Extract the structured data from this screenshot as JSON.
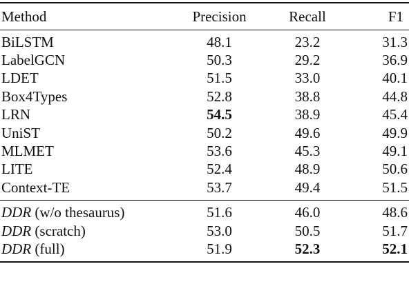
{
  "table": {
    "headers": {
      "method": "Method",
      "precision": "Precision",
      "recall": "Recall",
      "f1": "F1"
    },
    "group1": [
      {
        "method": "BiLSTM",
        "precision": "48.1",
        "recall": "23.2",
        "f1": "31.3"
      },
      {
        "method": "LabelGCN",
        "precision": "50.3",
        "recall": "29.2",
        "f1": "36.9"
      },
      {
        "method": "LDET",
        "precision": "51.5",
        "recall": "33.0",
        "f1": "40.1"
      },
      {
        "method": "Box4Types",
        "precision": "52.8",
        "recall": "38.8",
        "f1": "44.8"
      },
      {
        "method": "LRN",
        "precision": "54.5",
        "recall": "38.9",
        "f1": "45.4"
      },
      {
        "method": "UniST",
        "precision": "50.2",
        "recall": "49.6",
        "f1": "49.9"
      },
      {
        "method": "MLMET",
        "precision": "53.6",
        "recall": "45.3",
        "f1": "49.1"
      },
      {
        "method": "LITE",
        "precision": "52.4",
        "recall": "48.9",
        "f1": "50.6"
      },
      {
        "method": "Context-TE",
        "precision": "53.7",
        "recall": "49.4",
        "f1": "51.5"
      }
    ],
    "group2": [
      {
        "method_name": "DDR",
        "method_variant": "(w/o thesaurus)",
        "precision": "51.6",
        "recall": "46.0",
        "f1": "48.6"
      },
      {
        "method_name": "DDR",
        "method_variant": "(scratch)",
        "precision": "53.0",
        "recall": "50.5",
        "f1": "51.7"
      },
      {
        "method_name": "DDR",
        "method_variant": "(full)",
        "precision": "51.9",
        "recall": "52.3",
        "f1": "52.1"
      }
    ]
  }
}
